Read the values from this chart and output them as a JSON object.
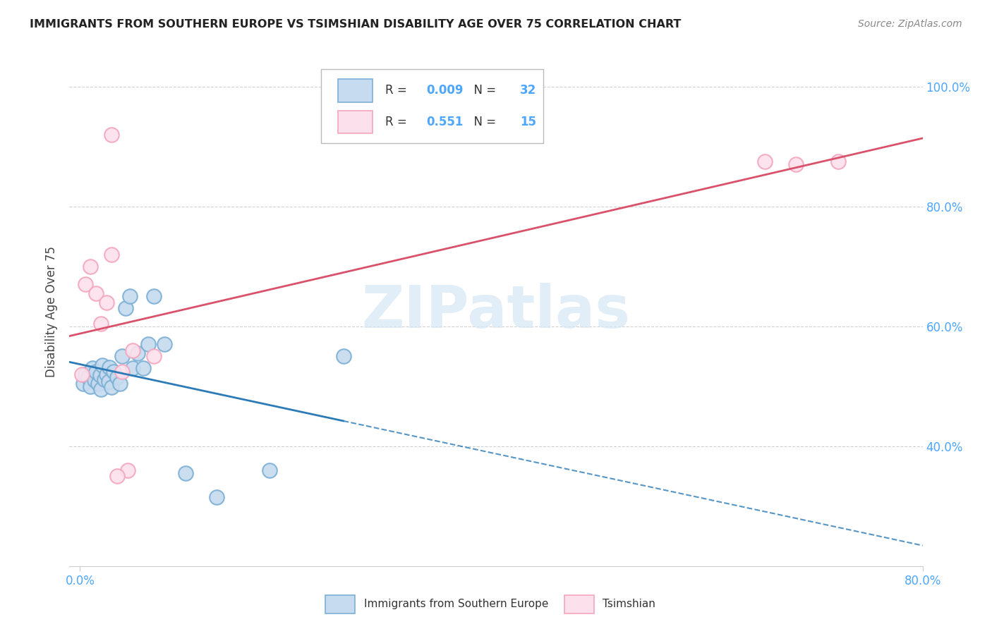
{
  "title": "IMMIGRANTS FROM SOUTHERN EUROPE VS TSIMSHIAN DISABILITY AGE OVER 75 CORRELATION CHART",
  "source": "Source: ZipAtlas.com",
  "ylabel": "Disability Age Over 75",
  "blue_R": "0.009",
  "blue_N": "32",
  "pink_R": "0.551",
  "pink_N": "15",
  "blue_edge_color": "#7bafd4",
  "blue_fill_color": "#c6dbef",
  "pink_edge_color": "#f4a6be",
  "pink_fill_color": "#fce0ec",
  "blue_line_color": "#2c7bb6",
  "pink_line_color": "#d9516a",
  "watermark_color": "#d6e8f5",
  "grid_color": "#cccccc",
  "right_tick_color": "#4da6ff",
  "x_tick_color": "#4da6ff",
  "blue_x": [
    0.3,
    0.5,
    0.8,
    1.0,
    1.2,
    1.4,
    1.5,
    1.7,
    1.9,
    2.0,
    2.1,
    2.3,
    2.5,
    2.7,
    2.8,
    3.0,
    3.2,
    3.5,
    3.8,
    4.0,
    4.3,
    4.7,
    5.0,
    5.5,
    6.0,
    6.5,
    7.0,
    8.0,
    10.0,
    13.0,
    18.0,
    25.0
  ],
  "blue_y": [
    50.5,
    52.0,
    51.5,
    50.0,
    53.0,
    51.0,
    52.5,
    50.5,
    51.8,
    49.5,
    53.5,
    51.2,
    52.0,
    50.8,
    53.2,
    49.8,
    52.5,
    51.5,
    50.5,
    55.0,
    63.0,
    65.0,
    53.0,
    55.5,
    53.0,
    57.0,
    65.0,
    57.0,
    35.5,
    31.5,
    36.0,
    55.0
  ],
  "pink_x": [
    0.2,
    0.5,
    1.0,
    1.5,
    2.0,
    2.5,
    3.0,
    4.0,
    5.0,
    7.0,
    4.5,
    3.5,
    65.0,
    68.0,
    72.0
  ],
  "pink_y": [
    52.0,
    67.0,
    70.0,
    65.5,
    60.5,
    64.0,
    72.0,
    52.5,
    56.0,
    55.0,
    36.0,
    35.0,
    87.5,
    87.0,
    87.5
  ],
  "pink_high_x": 3.0,
  "pink_high_y": 92.0,
  "xlim": [
    -1,
    80
  ],
  "ylim": [
    20,
    105
  ],
  "yticks": [
    40,
    60,
    80,
    100
  ],
  "ytick_labels": [
    "40.0%",
    "60.0%",
    "80.0%",
    "100.0%"
  ],
  "xtick_positions": [
    0,
    80
  ],
  "xtick_labels": [
    "0.0%",
    "80.0%"
  ]
}
